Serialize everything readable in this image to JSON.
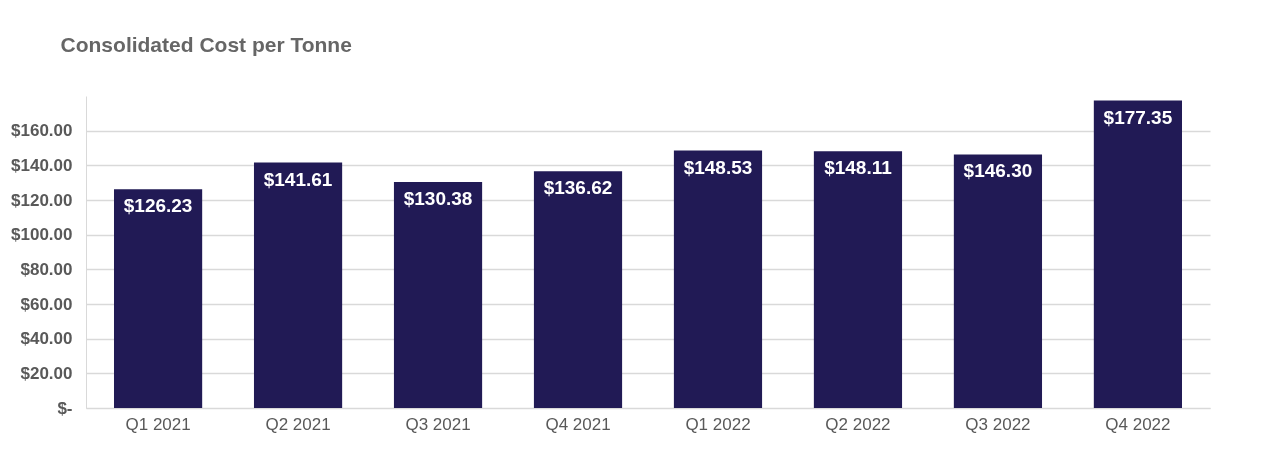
{
  "chart_data": {
    "type": "bar",
    "title": "Consolidated Cost per Tonne",
    "categories": [
      "Q1 2021",
      "Q2 2021",
      "Q3 2021",
      "Q4 2021",
      "Q1 2022",
      "Q2 2022",
      "Q3 2022",
      "Q4 2022"
    ],
    "values": [
      126.23,
      141.61,
      130.38,
      136.62,
      148.53,
      148.11,
      146.3,
      177.35
    ],
    "value_labels": [
      "$126.23",
      "$141.61",
      "$130.38",
      "$136.62",
      "$148.53",
      "$148.11",
      "$146.30",
      "$177.35"
    ],
    "color": "#211a55",
    "ylim": [
      0,
      180
    ],
    "yticks": [
      {
        "value": 0,
        "label": "$-"
      },
      {
        "value": 20,
        "label": "$20.00"
      },
      {
        "value": 40,
        "label": "$40.00"
      },
      {
        "value": 60,
        "label": "$60.00"
      },
      {
        "value": 80,
        "label": "$80.00"
      },
      {
        "value": 100,
        "label": "$100.00"
      },
      {
        "value": 120,
        "label": "$120.00"
      },
      {
        "value": 140,
        "label": "$140.00"
      },
      {
        "value": 160,
        "label": "$160.00"
      }
    ],
    "grid": "y"
  }
}
